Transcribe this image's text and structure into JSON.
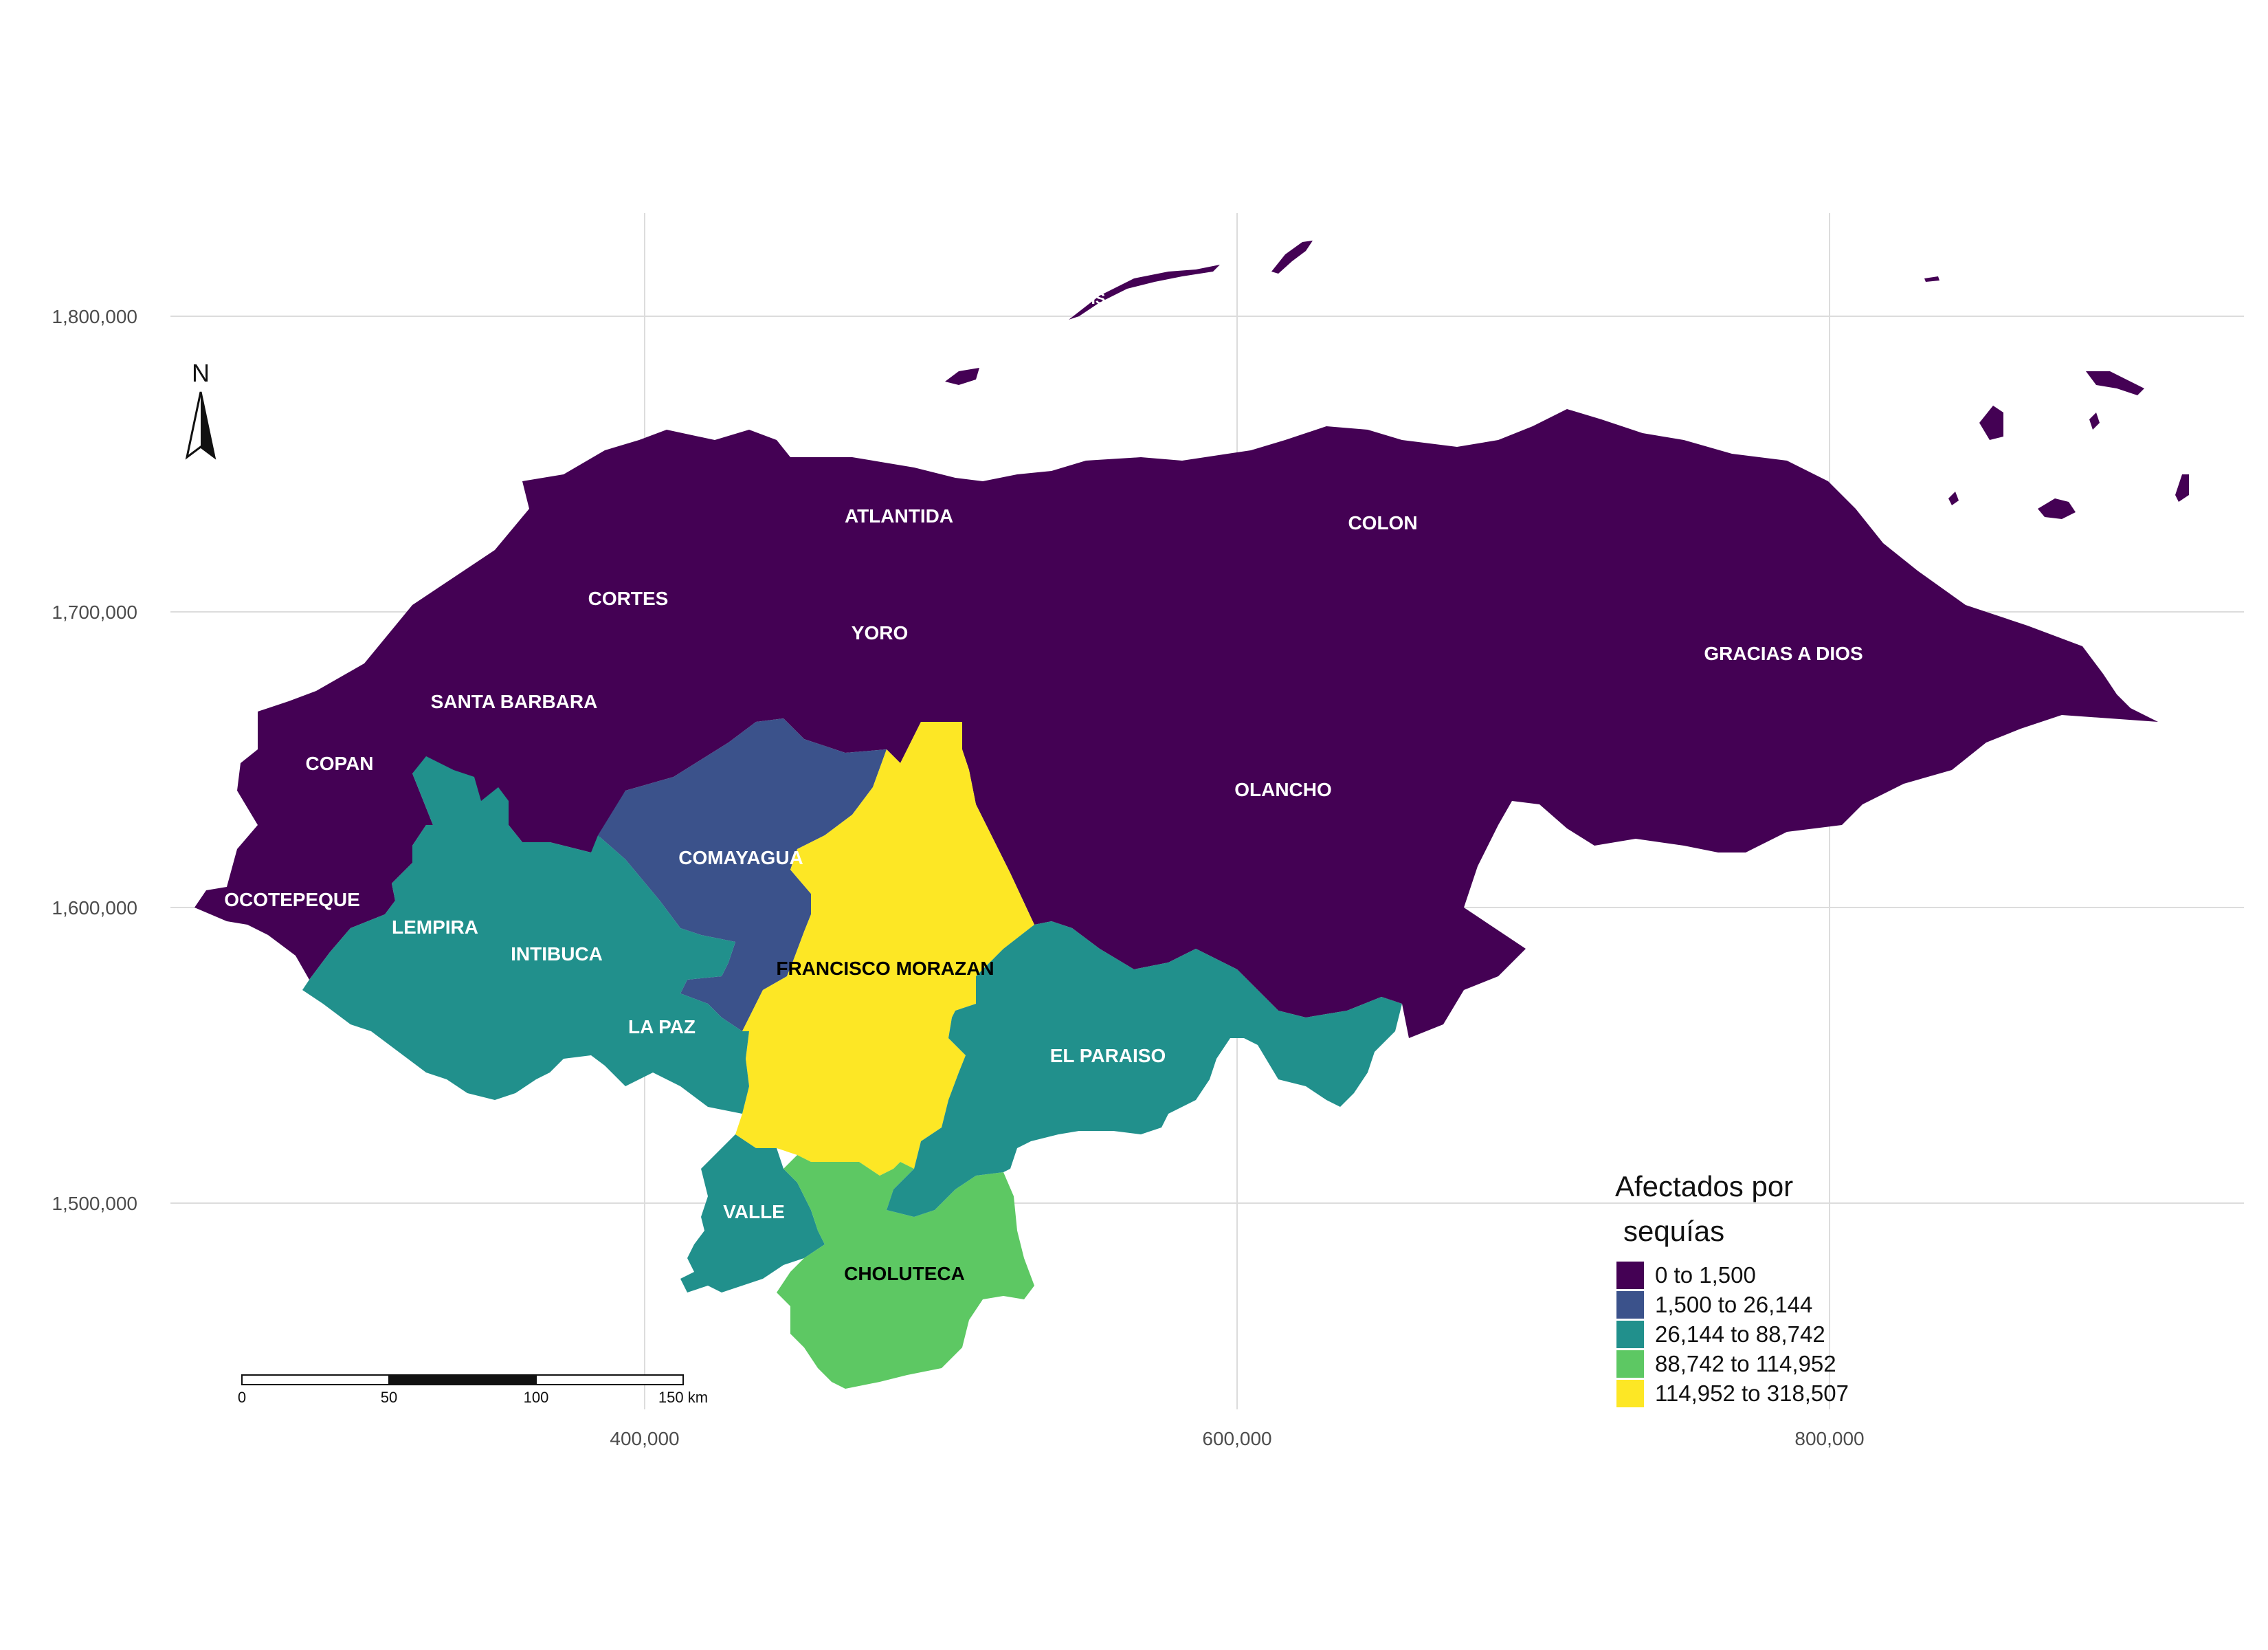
{
  "chart_data": {
    "type": "choropleth",
    "legend": {
      "title_line1": "Afectados por",
      "title_line2": "sequías",
      "classes": [
        {
          "label": "0 to 1,500",
          "color": "#440154"
        },
        {
          "label": "1,500 to 26,144",
          "color": "#3b528b"
        },
        {
          "label": "26,144 to 88,742",
          "color": "#21908c"
        },
        {
          "label": "88,742 to 114,952",
          "color": "#5dc863"
        },
        {
          "label": "114,952 to 318,507",
          "color": "#fde725"
        }
      ]
    },
    "x_ticks": [
      "400,000",
      "600,000",
      "800,000"
    ],
    "y_ticks": [
      "1,800,000",
      "1,700,000",
      "1,600,000",
      "1,500,000"
    ],
    "grid": true,
    "north_arrow": "N",
    "scale_bar": {
      "labels": [
        "0",
        "50",
        "100",
        "150 km"
      ]
    },
    "departments": [
      {
        "name": "ATLANTIDA",
        "class": 0
      },
      {
        "name": "COLON",
        "class": 0
      },
      {
        "name": "CORTES",
        "class": 0
      },
      {
        "name": "YORO",
        "class": 0
      },
      {
        "name": "GRACIAS A DIOS",
        "class": 0
      },
      {
        "name": "SANTA BARBARA",
        "class": 0
      },
      {
        "name": "COPAN",
        "class": 0
      },
      {
        "name": "OLANCHO",
        "class": 0
      },
      {
        "name": "OCOTEPEQUE",
        "class": 0
      },
      {
        "name": "COMAYAGUA",
        "class": 1
      },
      {
        "name": "LEMPIRA",
        "class": 2
      },
      {
        "name": "INTIBUCA",
        "class": 2
      },
      {
        "name": "LA PAZ",
        "class": 2
      },
      {
        "name": "EL PARAISO",
        "class": 2
      },
      {
        "name": "VALLE",
        "class": 2
      },
      {
        "name": "FRANCISCO MORAZAN",
        "class": 4
      },
      {
        "name": "CHOLUTECA",
        "class": 3
      }
    ],
    "islands_label": "IS"
  }
}
